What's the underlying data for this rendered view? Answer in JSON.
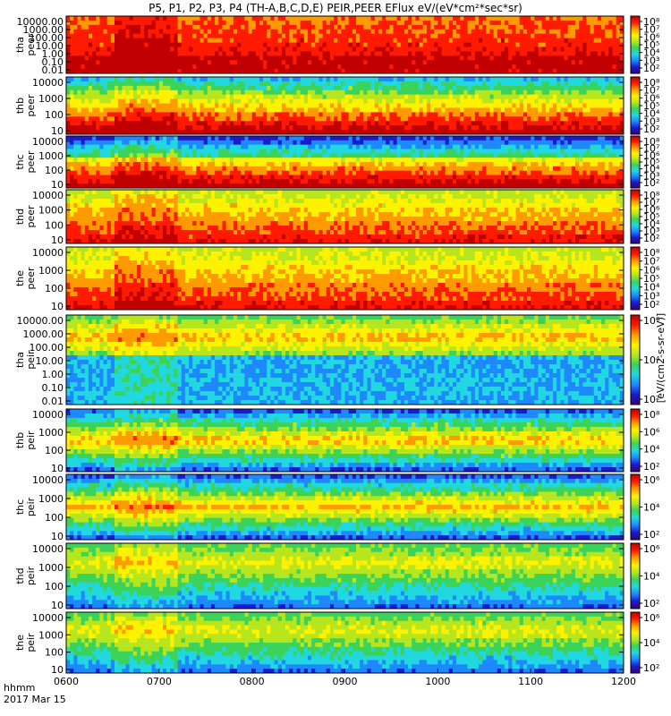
{
  "figure": {
    "title": "P5, P1, P2, P3, P4 (TH-A,B,C,D,E) PEIR,PEER EFlux eV/(eV*cm²*sec*sr)",
    "time_label": "hhmm",
    "date_label": "2017 Mar 15",
    "colorbar_label": "[eV/(cm2-s-sr-eV)]"
  },
  "chart_data": {
    "type": "heatmap",
    "title": "P5, P1, P2, P3, P4 (TH-A,B,C,D,E) PEIR,PEER EFlux eV/(eV*cm²*sec*sr)",
    "xlabel": "hhmm",
    "x_ticks": [
      "0600",
      "0700",
      "0800",
      "0900",
      "1000",
      "1100",
      "1200"
    ],
    "xlim": [
      "0600",
      "1200"
    ],
    "date": "2017 Mar 15",
    "colorbar_ticks": [
      "10²",
      "10⁴",
      "10⁶",
      "10⁸"
    ],
    "colorbar_scale": "log",
    "colorbar_label": "[eV/(cm2-s-sr-eV)]",
    "colormap": [
      "#3a0075",
      "#1a1ad0",
      "#1e88ff",
      "#22d8e0",
      "#3bd35a",
      "#b8e61e",
      "#fff200",
      "#ff9a00",
      "#ff1a00",
      "#c00000"
    ],
    "panels": [
      {
        "ylabel": [
          "tha",
          "peer"
        ],
        "yscale": "log",
        "yticks": [
          "10000.00",
          "1000.00",
          "100.00",
          "10.00",
          "1.00",
          "0.10",
          "0.01"
        ],
        "colorbar_ticks": [
          "10⁸",
          "10⁷",
          "10⁶",
          "10⁵",
          "10⁴",
          "10³",
          "10²"
        ]
      },
      {
        "ylabel": [
          "thb",
          "peer"
        ],
        "yscale": "log",
        "yticks": [
          "10000",
          "1000",
          "100",
          "10"
        ],
        "colorbar_ticks": [
          "10⁸",
          "10⁷",
          "10⁶",
          "10⁵",
          "10⁴",
          "10³",
          "10²"
        ]
      },
      {
        "ylabel": [
          "thc",
          "peer"
        ],
        "yscale": "log",
        "yticks": [
          "10000",
          "1000",
          "100",
          "10"
        ],
        "colorbar_ticks": [
          "10⁸",
          "10⁷",
          "10⁶",
          "10⁵",
          "10⁴",
          "10³",
          "10²"
        ]
      },
      {
        "ylabel": [
          "thd",
          "peer"
        ],
        "yscale": "log",
        "yticks": [
          "10000",
          "1000",
          "100",
          "10"
        ],
        "colorbar_ticks": [
          "10⁸",
          "10⁷",
          "10⁶",
          "10⁵",
          "10⁴",
          "10³",
          "10²"
        ]
      },
      {
        "ylabel": [
          "the",
          "peer"
        ],
        "yscale": "log",
        "yticks": [
          "10000",
          "1000",
          "100",
          "10"
        ],
        "colorbar_ticks": [
          "10⁸",
          "10⁷",
          "10⁶",
          "10⁵",
          "10⁴",
          "10³",
          "10²"
        ]
      },
      {
        "ylabel": [
          "tha",
          "peir"
        ],
        "yscale": "log",
        "yticks": [
          "10000.00",
          "1000.00",
          "100.00",
          "10.00",
          "1.00",
          "0.10",
          "0.01"
        ],
        "colorbar_ticks": [
          "10⁶",
          "10⁴",
          "10²"
        ]
      },
      {
        "ylabel": [
          "thb",
          "peir"
        ],
        "yscale": "log",
        "yticks": [
          "10000",
          "1000",
          "100",
          "10"
        ],
        "colorbar_ticks": [
          "10⁸",
          "10⁶",
          "10⁴",
          "10²"
        ]
      },
      {
        "ylabel": [
          "thc",
          "peir"
        ],
        "yscale": "log",
        "yticks": [
          "10000",
          "1000",
          "100",
          "10"
        ],
        "colorbar_ticks": [
          "10⁶",
          "10⁴",
          "10²"
        ]
      },
      {
        "ylabel": [
          "thd",
          "peir"
        ],
        "yscale": "log",
        "yticks": [
          "10000",
          "1000",
          "100",
          "10"
        ],
        "colorbar_ticks": [
          "10⁶",
          "10⁴",
          "10²"
        ]
      },
      {
        "ylabel": [
          "the",
          "peir"
        ],
        "yscale": "log",
        "yticks": [
          "10000",
          "1000",
          "100",
          "10"
        ],
        "colorbar_ticks": [
          "10⁶",
          "10⁴",
          "10²"
        ]
      }
    ]
  }
}
